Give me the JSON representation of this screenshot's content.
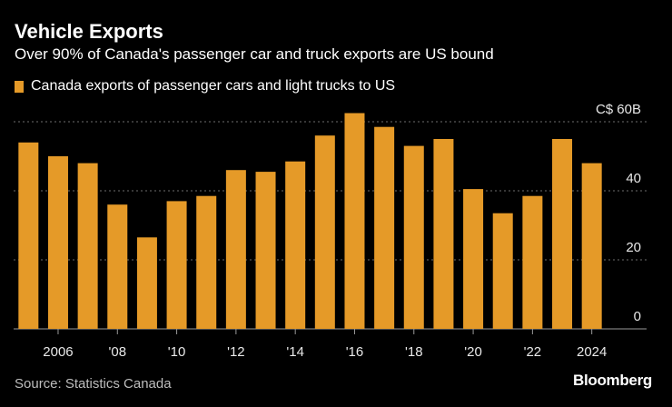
{
  "header": {
    "title": "Vehicle Exports",
    "subtitle": "Over 90% of Canada's passenger car and truck exports are US bound"
  },
  "legend": {
    "label": "Canada exports of passenger cars and light trucks to US"
  },
  "footer": {
    "source": "Source: Statistics Canada",
    "brand": "Bloomberg"
  },
  "colors": {
    "bar": "#e59a28",
    "grid": "#6e6e6e",
    "background": "#000000"
  },
  "chart_data": {
    "type": "bar",
    "title": "Vehicle Exports",
    "subtitle": "Over 90% of Canada's passenger car and truck exports are US bound",
    "series_name": "Canada exports of passenger cars and light trucks to US",
    "unit": "C$ billions",
    "categories": [
      2005,
      2006,
      2007,
      2008,
      2009,
      2010,
      2011,
      2012,
      2013,
      2014,
      2015,
      2016,
      2017,
      2018,
      2019,
      2020,
      2021,
      2022,
      2023,
      2024
    ],
    "values": [
      54.0,
      50.0,
      48.0,
      36.0,
      26.5,
      37.0,
      38.5,
      46.0,
      45.5,
      48.5,
      56.0,
      62.5,
      58.5,
      53.0,
      55.0,
      40.5,
      33.5,
      38.5,
      55.0,
      48.0
    ],
    "ylim": [
      0,
      60
    ],
    "y_ticks": [
      {
        "value": 0,
        "label": "0"
      },
      {
        "value": 20,
        "label": "20"
      },
      {
        "value": 40,
        "label": "40"
      },
      {
        "value": 60,
        "label": "C$ 60B"
      }
    ],
    "x_ticks": [
      {
        "category": 2006,
        "label": "2006"
      },
      {
        "category": 2008,
        "label": "'08"
      },
      {
        "category": 2010,
        "label": "'10"
      },
      {
        "category": 2012,
        "label": "'12"
      },
      {
        "category": 2014,
        "label": "'14"
      },
      {
        "category": 2016,
        "label": "'16"
      },
      {
        "category": 2018,
        "label": "'18"
      },
      {
        "category": 2020,
        "label": "'20"
      },
      {
        "category": 2022,
        "label": "'22"
      },
      {
        "category": 2024,
        "label": "2024"
      }
    ],
    "xlabel": "",
    "ylabel": "",
    "grid": true,
    "legend_position": "top-left"
  }
}
